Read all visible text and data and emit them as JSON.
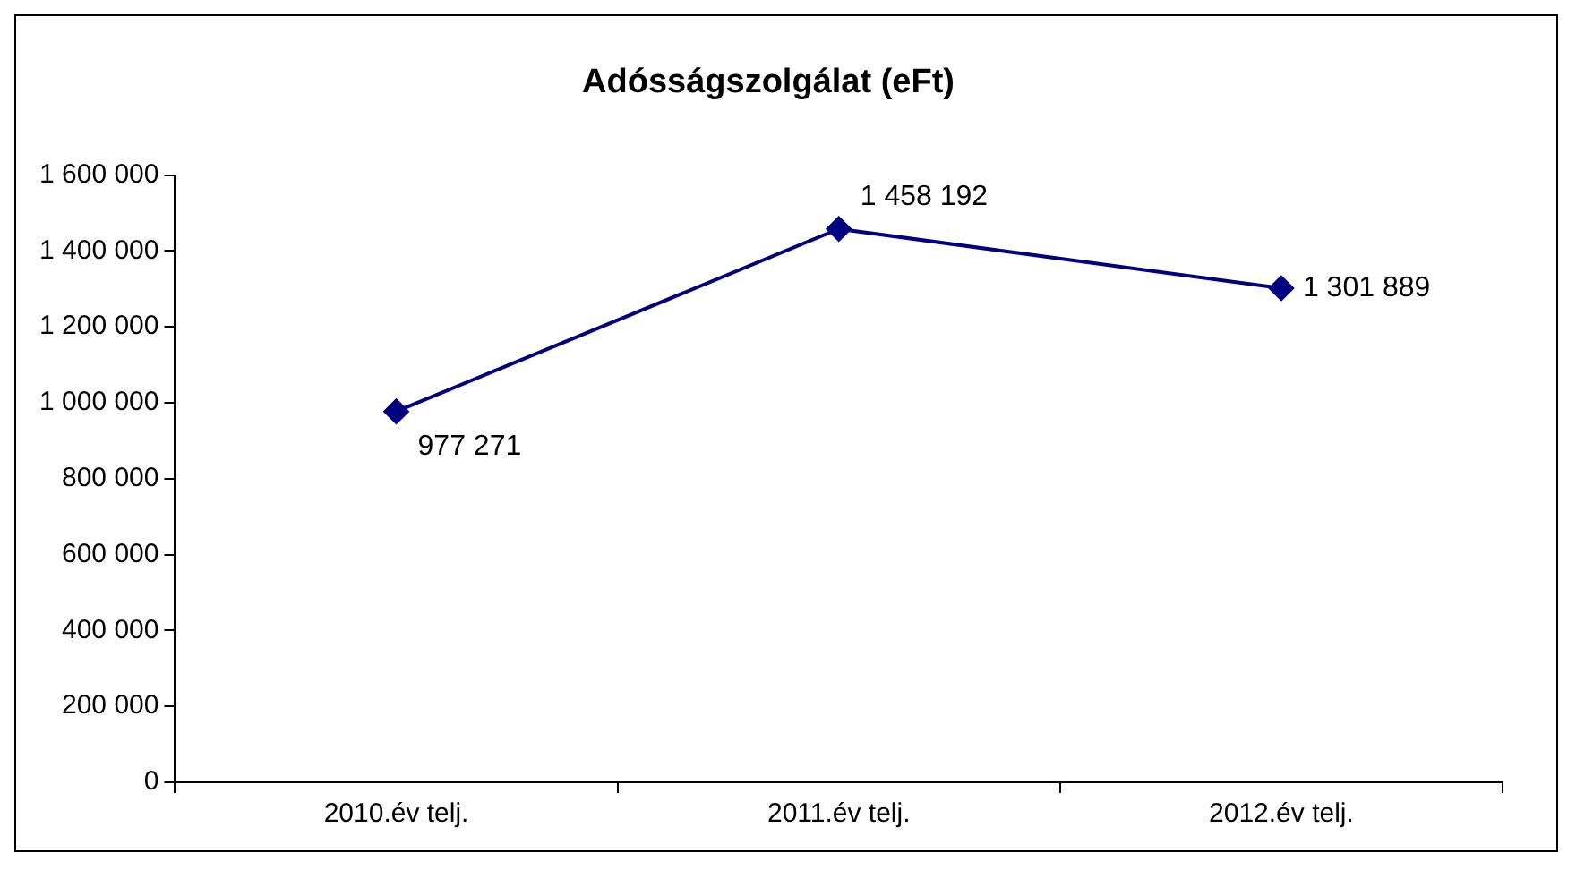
{
  "chart_data": {
    "type": "line",
    "title": "Adósságszolgálat (eFt)",
    "categories": [
      "2010.év telj.",
      "2011.év telj.",
      "2012.év telj."
    ],
    "series": [
      {
        "color": "#000080",
        "values": [
          977271,
          1458192,
          1301889
        ],
        "value_labels": [
          "977 271",
          "1 458 192",
          "1 301 889"
        ]
      }
    ],
    "ylim": [
      0,
      1600000
    ],
    "yticks": [
      0,
      {
        "value": 200000,
        "label": "200 000"
      },
      {
        "value": 400000,
        "label": "400 000"
      },
      {
        "value": 600000,
        "label": "600 000"
      },
      {
        "value": 800000,
        "label": "800 000"
      },
      {
        "value": 1000000,
        "label": "1 000 000"
      },
      {
        "value": 1200000,
        "label": "1 200 000"
      },
      {
        "value": 1400000,
        "label": "1 400 000"
      },
      {
        "value": 1600000,
        "label": "1 600 000"
      }
    ],
    "marker": "diamond",
    "line_style": "solid",
    "grid": false,
    "legend": false
  }
}
